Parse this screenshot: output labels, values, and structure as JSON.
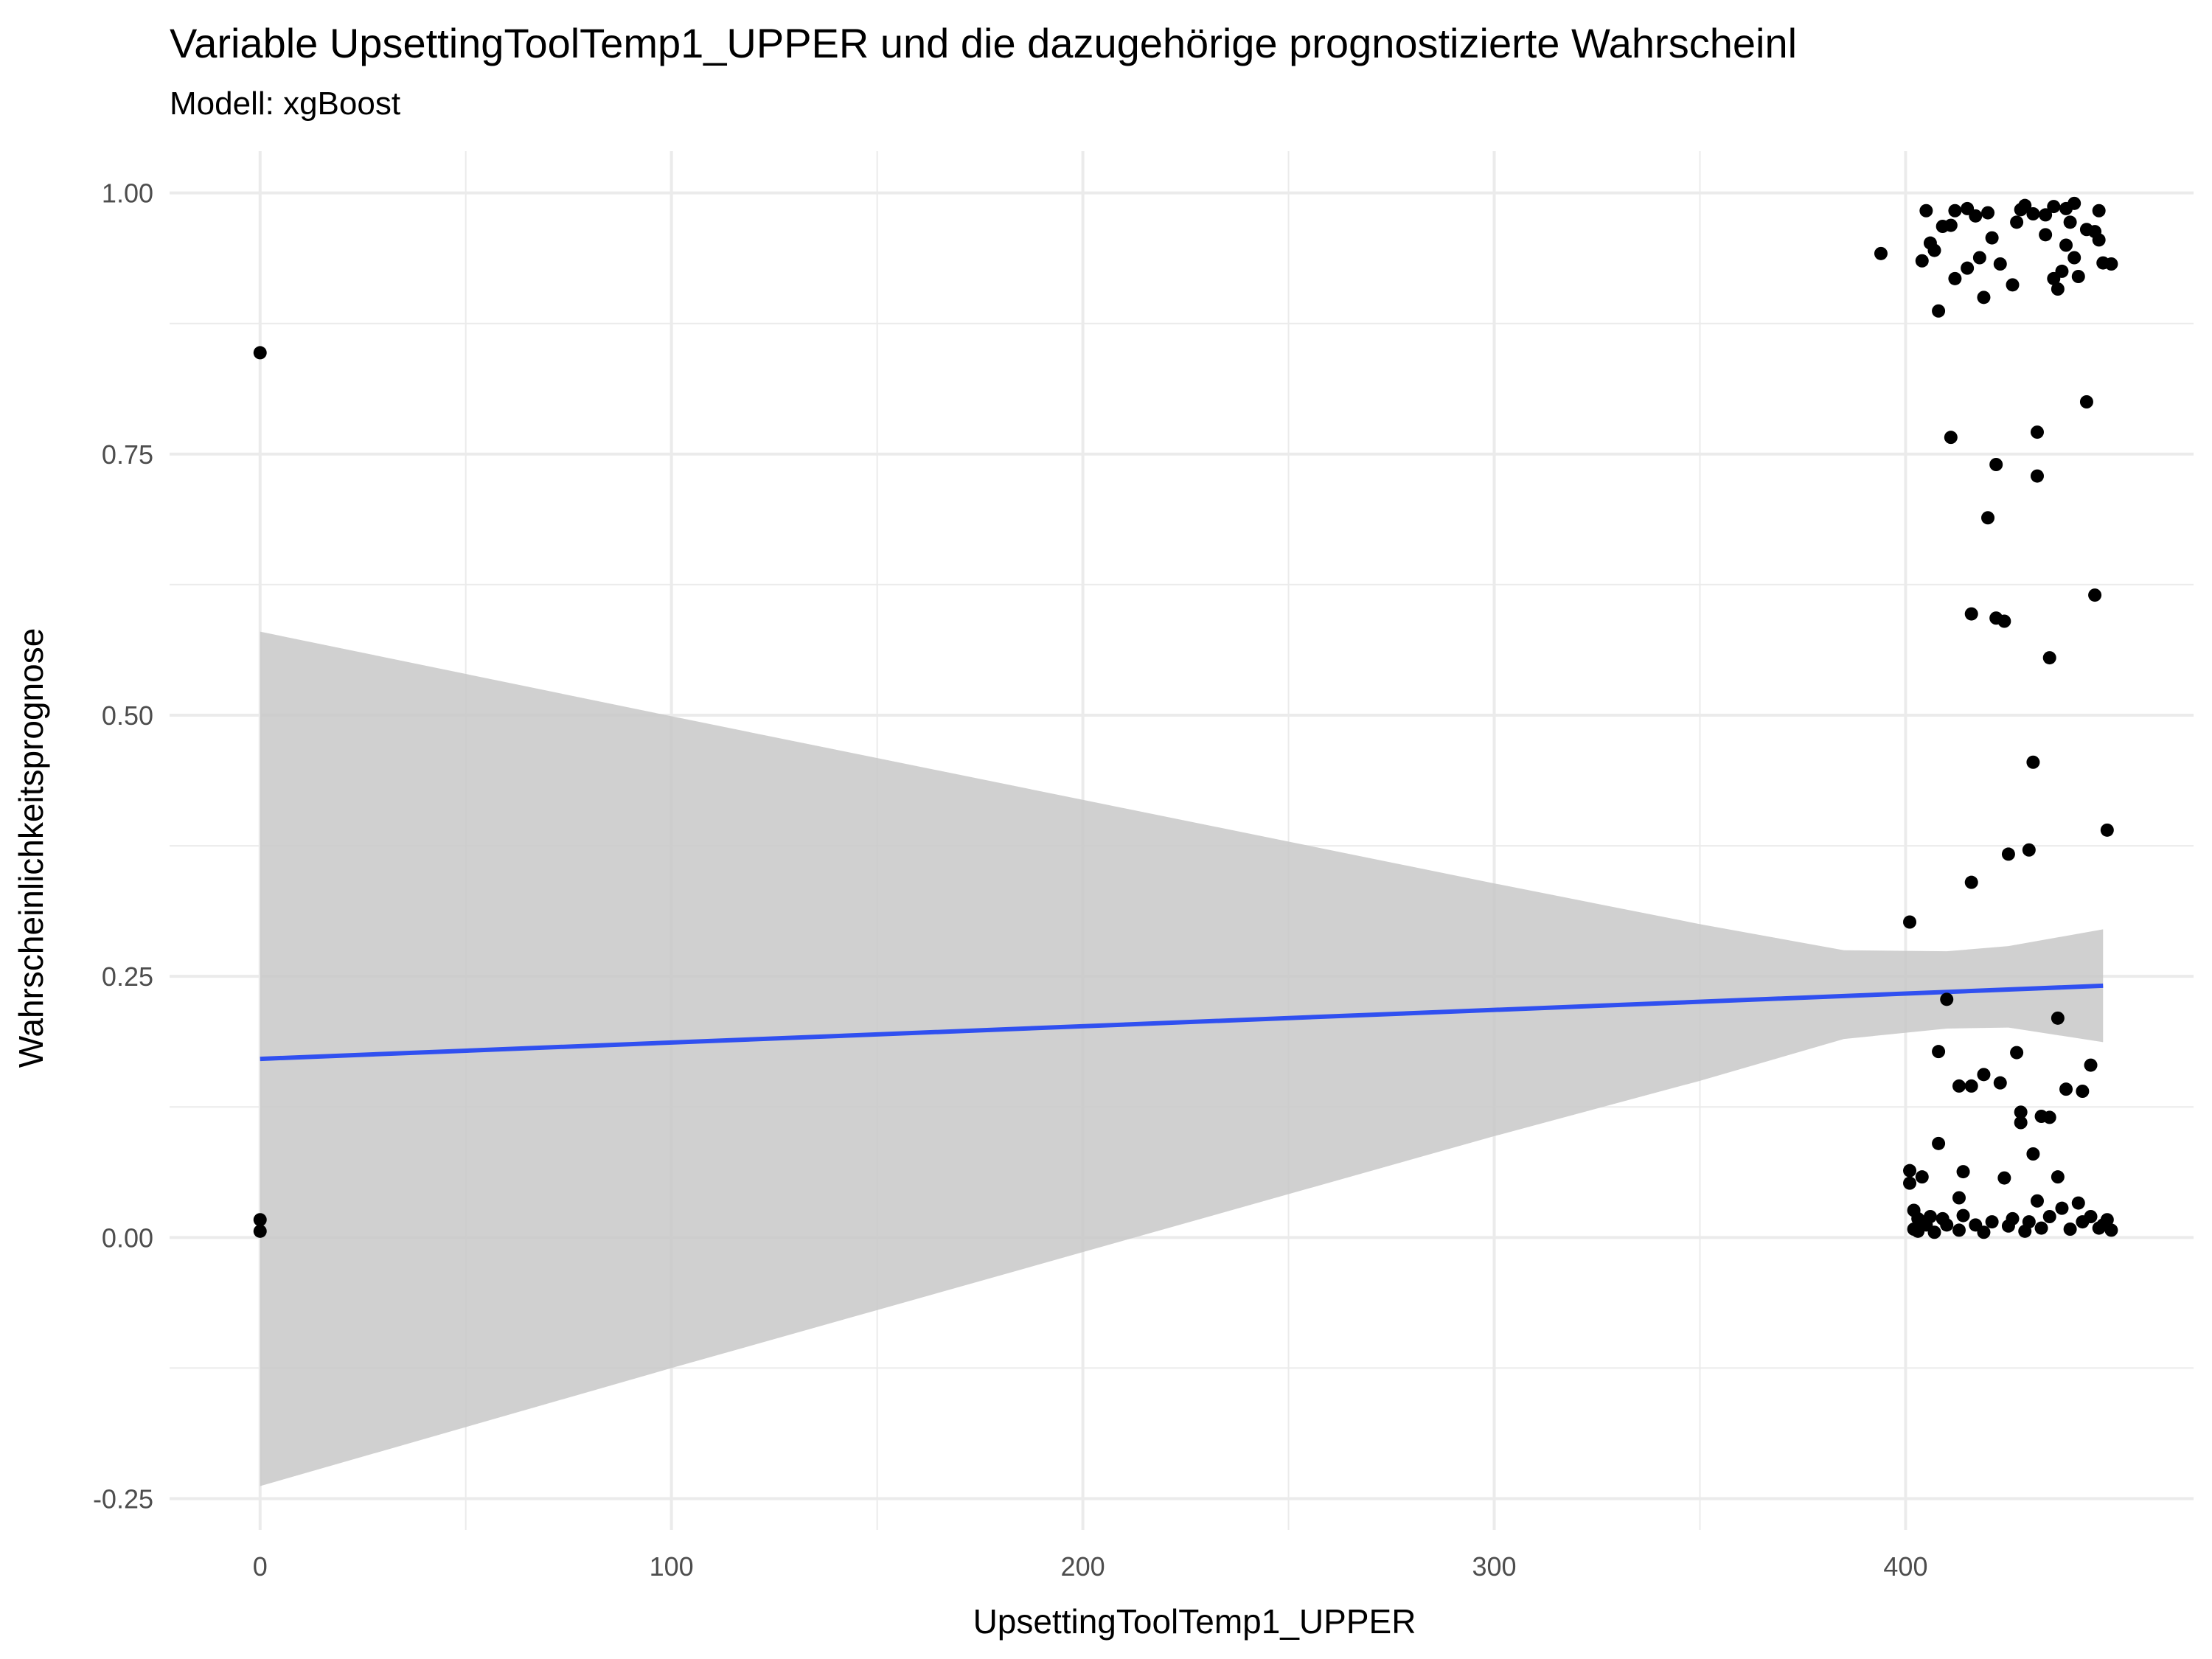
{
  "chart_data": {
    "type": "scatter",
    "title": "Variable UpsettingToolTemp1_UPPER und die dazugehörige prognostizierte Wahrscheinl",
    "subtitle": "Modell: xgBoost",
    "xlabel": "UpsettingToolTemp1_UPPER",
    "ylabel": "Wahrscheinlichkeitsprognose",
    "xlim": [
      -22,
      470
    ],
    "ylim": [
      -0.28,
      1.04
    ],
    "x_ticks": [
      0,
      100,
      200,
      300,
      400
    ],
    "x_tick_labels": [
      "0",
      "100",
      "200",
      "300",
      "400"
    ],
    "y_ticks": [
      -0.25,
      0,
      0.25,
      0.5,
      0.75,
      1.0
    ],
    "y_tick_labels": [
      "-0.25",
      "0.00",
      "0.25",
      "0.50",
      "0.75",
      "1.00"
    ],
    "grid": true,
    "colors": {
      "points": "#000000",
      "trend_line": "#3050f0",
      "confidence_band": "#c8c8c8"
    },
    "trend_line": {
      "x": [
        0,
        448
      ],
      "y": [
        0.171,
        0.241
      ]
    },
    "confidence_band": {
      "x": [
        0,
        100,
        200,
        300,
        350,
        385,
        410,
        425,
        448
      ],
      "upper": [
        0.58,
        0.499,
        0.419,
        0.339,
        0.3,
        0.275,
        0.274,
        0.279,
        0.295
      ],
      "lower": [
        -0.238,
        -0.125,
        -0.014,
        0.097,
        0.15,
        0.19,
        0.2,
        0.201,
        0.187
      ]
    },
    "points": [
      [
        0,
        0.847
      ],
      [
        0,
        0.017
      ],
      [
        0,
        0.006
      ],
      [
        394,
        0.942
      ],
      [
        401,
        0.302
      ],
      [
        401,
        0.064
      ],
      [
        401,
        0.052
      ],
      [
        402,
        0.026
      ],
      [
        402,
        0.008
      ],
      [
        403,
        0.018
      ],
      [
        403,
        0.006
      ],
      [
        404,
        0.935
      ],
      [
        404,
        0.058
      ],
      [
        405,
        0.983
      ],
      [
        405,
        0.012
      ],
      [
        406,
        0.952
      ],
      [
        406,
        0.02
      ],
      [
        407,
        0.945
      ],
      [
        407,
        0.005
      ],
      [
        408,
        0.887
      ],
      [
        408,
        0.178
      ],
      [
        408,
        0.09
      ],
      [
        409,
        0.968
      ],
      [
        409,
        0.018
      ],
      [
        410,
        0.228
      ],
      [
        410,
        0.012
      ],
      [
        411,
        0.766
      ],
      [
        411,
        0.969
      ],
      [
        412,
        0.983
      ],
      [
        412,
        0.918
      ],
      [
        413,
        0.145
      ],
      [
        413,
        0.038
      ],
      [
        413,
        0.007
      ],
      [
        414,
        0.063
      ],
      [
        414,
        0.021
      ],
      [
        415,
        0.985
      ],
      [
        415,
        0.928
      ],
      [
        416,
        0.597
      ],
      [
        416,
        0.34
      ],
      [
        416,
        0.145
      ],
      [
        417,
        0.978
      ],
      [
        417,
        0.012
      ],
      [
        418,
        0.938
      ],
      [
        419,
        0.9
      ],
      [
        419,
        0.156
      ],
      [
        419,
        0.005
      ],
      [
        420,
        0.689
      ],
      [
        420,
        0.981
      ],
      [
        421,
        0.957
      ],
      [
        421,
        0.015
      ],
      [
        422,
        0.74
      ],
      [
        422,
        0.593
      ],
      [
        423,
        0.932
      ],
      [
        423,
        0.148
      ],
      [
        424,
        0.59
      ],
      [
        424,
        0.057
      ],
      [
        425,
        0.367
      ],
      [
        425,
        0.011
      ],
      [
        426,
        0.912
      ],
      [
        426,
        0.018
      ],
      [
        427,
        0.972
      ],
      [
        427,
        0.177
      ],
      [
        428,
        0.984
      ],
      [
        428,
        0.11
      ],
      [
        428,
        0.12
      ],
      [
        429,
        0.988
      ],
      [
        429,
        0.006
      ],
      [
        430,
        0.371
      ],
      [
        430,
        0.015
      ],
      [
        431,
        0.98
      ],
      [
        431,
        0.455
      ],
      [
        431,
        0.08
      ],
      [
        432,
        0.771
      ],
      [
        432,
        0.729
      ],
      [
        432,
        0.035
      ],
      [
        433,
        0.116
      ],
      [
        433,
        0.009
      ],
      [
        434,
        0.979
      ],
      [
        434,
        0.96
      ],
      [
        435,
        0.555
      ],
      [
        435,
        0.115
      ],
      [
        435,
        0.02
      ],
      [
        436,
        0.987
      ],
      [
        436,
        0.918
      ],
      [
        437,
        0.908
      ],
      [
        437,
        0.21
      ],
      [
        437,
        0.058
      ],
      [
        438,
        0.925
      ],
      [
        438,
        0.028
      ],
      [
        439,
        0.985
      ],
      [
        439,
        0.95
      ],
      [
        439,
        0.142
      ],
      [
        440,
        0.972
      ],
      [
        440,
        0.008
      ],
      [
        441,
        0.99
      ],
      [
        441,
        0.938
      ],
      [
        442,
        0.92
      ],
      [
        442,
        0.033
      ],
      [
        443,
        0.14
      ],
      [
        443,
        0.015
      ],
      [
        444,
        0.8
      ],
      [
        444,
        0.965
      ],
      [
        445,
        0.165
      ],
      [
        445,
        0.02
      ],
      [
        446,
        0.615
      ],
      [
        446,
        0.963
      ],
      [
        447,
        0.983
      ],
      [
        447,
        0.955
      ],
      [
        447,
        0.009
      ],
      [
        448,
        0.933
      ],
      [
        448,
        0.012
      ],
      [
        449,
        0.39
      ],
      [
        449,
        0.017
      ],
      [
        450,
        0.932
      ],
      [
        450,
        0.007
      ]
    ]
  }
}
